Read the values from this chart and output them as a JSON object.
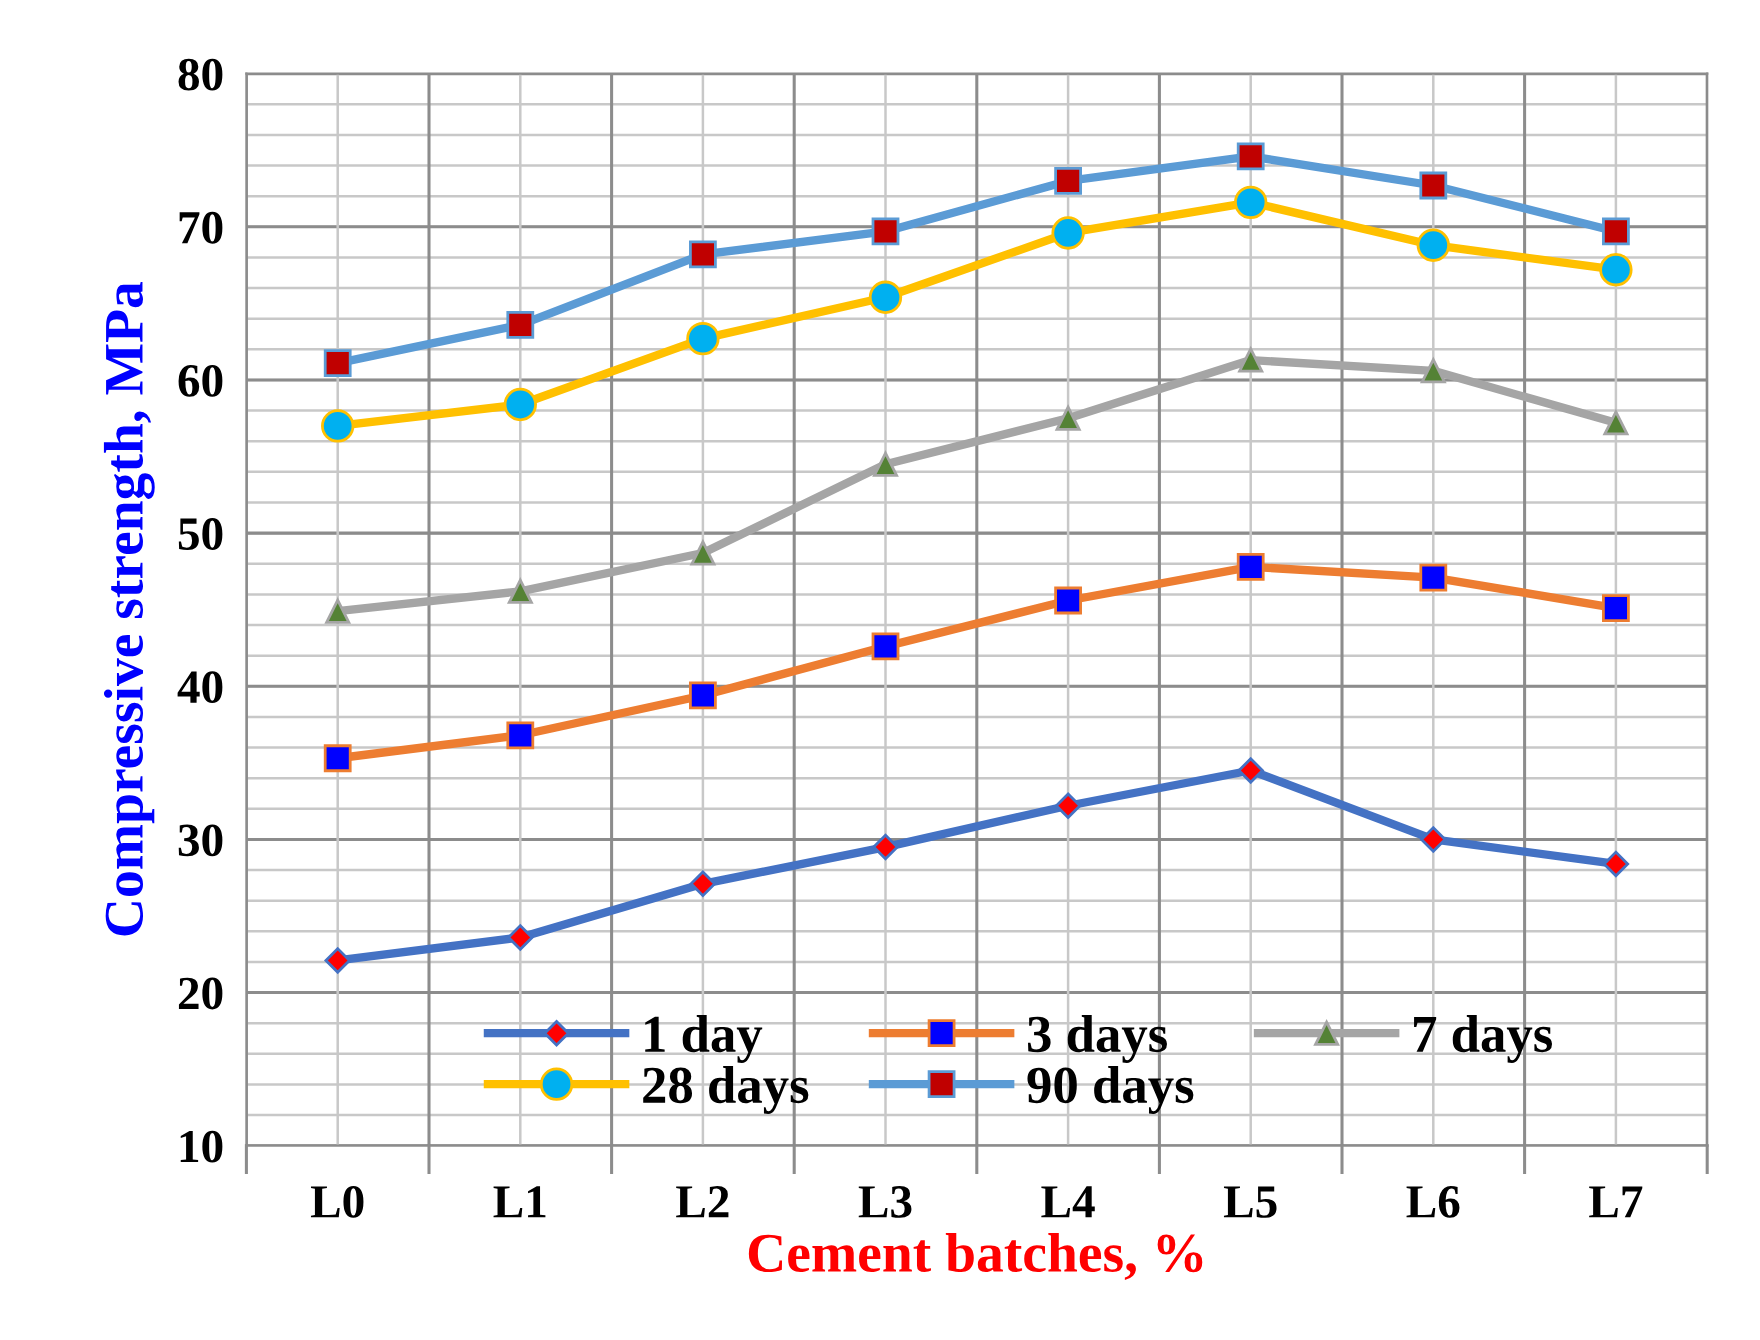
{
  "chart_data": {
    "type": "line",
    "xlabel": "Cement batches, %",
    "ylabel": "Compressive strength, MPa",
    "categories": [
      "L0",
      "L1",
      "L2",
      "L3",
      "L4",
      "L5",
      "L6",
      "L7"
    ],
    "ylim": [
      10,
      80
    ],
    "yticks": [
      10,
      20,
      30,
      40,
      50,
      60,
      70,
      80
    ],
    "grid": true,
    "legend": "bottom",
    "series": [
      {
        "name": "1 day",
        "color": "#4472c4",
        "marker": "diamond",
        "colors": [
          "#ff0000",
          "#ff0000",
          "#ff0000",
          "#ff0000",
          "#ff0000",
          "#ff0000",
          "#ff0000",
          "#ff0000"
        ],
        "values": [
          22.1,
          23.6,
          27.1,
          29.5,
          32.2,
          34.5,
          30.0,
          28.4
        ]
      },
      {
        "name": "3 days",
        "color": "#ed7d31",
        "marker": "square",
        "colors": [
          "#0000ff",
          "#0000ff",
          "#0000ff",
          "#0000ff",
          "#0000ff",
          "#0000ff",
          "#0000ff",
          "#0000ff"
        ],
        "values": [
          35.3,
          36.8,
          39.4,
          42.6,
          45.6,
          47.8,
          47.1,
          45.1
        ]
      },
      {
        "name": "7 days",
        "color": "#a5a5a5",
        "marker": "triangle",
        "colors": [
          "#548235",
          "#548235",
          "#548235",
          "#548235",
          "#548235",
          "#548235",
          "#548235",
          "#548235"
        ],
        "values": [
          44.9,
          46.2,
          48.7,
          54.5,
          57.5,
          61.3,
          60.6,
          57.2
        ]
      },
      {
        "name": "28 days",
        "color": "#ffc000",
        "marker": "circle",
        "colors": [
          "#00b0f0",
          "#00b0f0",
          "#00b0f0",
          "#00b0f0",
          "#00b0f0",
          "#00b0f0",
          "#00b0f0",
          "#00b0f0"
        ],
        "values": [
          57.0,
          58.4,
          62.7,
          65.4,
          69.6,
          71.6,
          68.8,
          67.2
        ]
      },
      {
        "name": "90 days",
        "color": "#5b9bd5",
        "marker": "square",
        "colors": [
          "#c00000",
          "#c00000",
          "#c00000",
          "#c00000",
          "#c00000",
          "#c00000",
          "#c00000",
          "#c00000"
        ],
        "values": [
          61.1,
          63.6,
          68.2,
          69.7,
          73.0,
          74.6,
          72.7,
          69.7
        ]
      }
    ]
  }
}
